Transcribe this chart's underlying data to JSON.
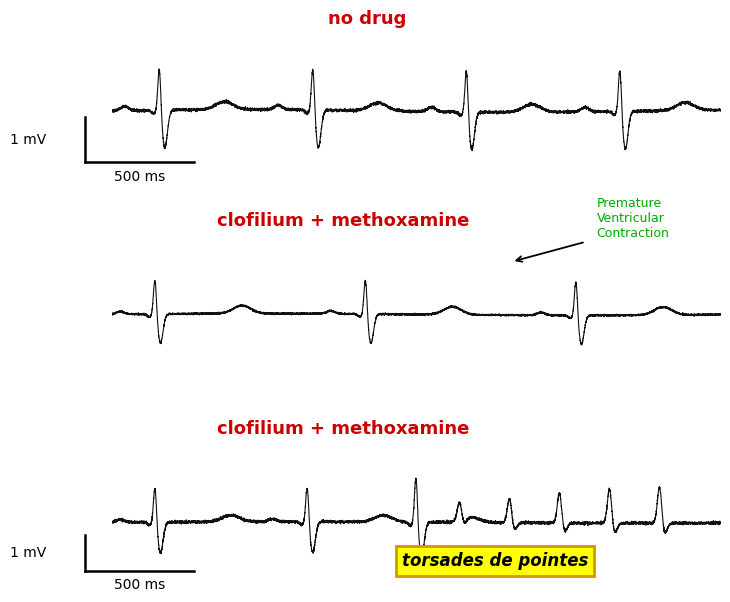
{
  "title1": "no drug",
  "title2": "clofilium + methoxamine",
  "title3": "clofilium + methoxamine",
  "annotation_text": "Premature\nVentricular\nContraction",
  "annotation_color": "#00aa00",
  "torsades_text": "torsades de pointes",
  "scale_label_mv": "1 mV",
  "scale_label_ms": "500 ms",
  "title_color": "#cc0000",
  "line_color": "#111111",
  "background_color": "#ffffff",
  "ecg_lw": 0.8,
  "scalebar_lw": 1.8
}
